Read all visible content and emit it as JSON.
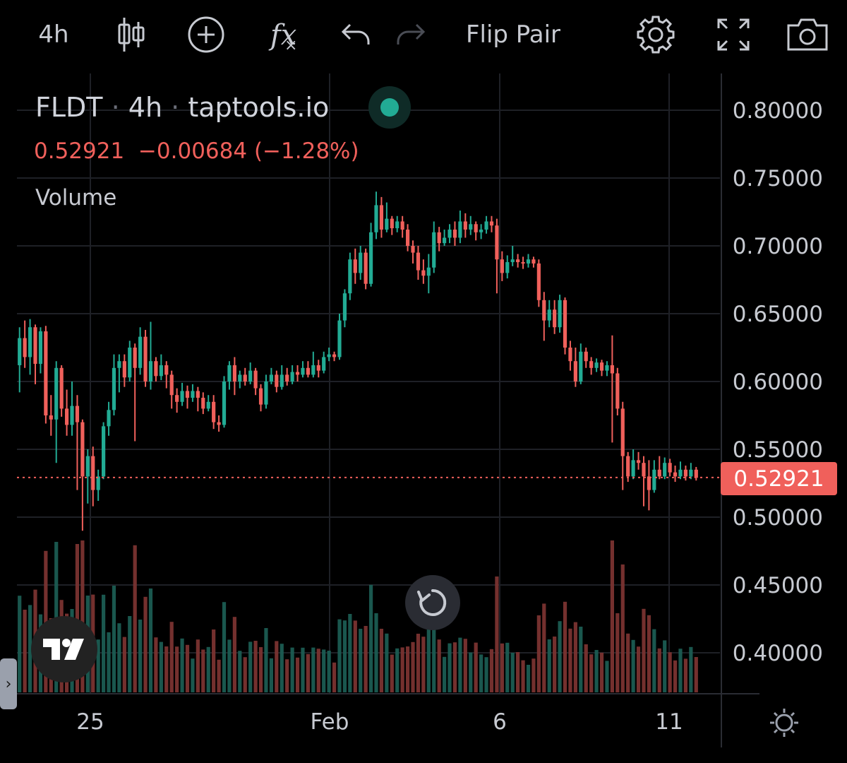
{
  "toolbar": {
    "interval": "4h",
    "flip_pair": "Flip Pair",
    "fx_label": "fx"
  },
  "legend": {
    "symbol": "FLDT",
    "interval": "4h",
    "source": "taptools.io",
    "separator": "·",
    "last": "0.52921",
    "change": "−0.00684",
    "change_pct": "(−1.28%)",
    "volume_label": "Volume"
  },
  "price_tag": "0.52921",
  "colors": {
    "up": "#22ab94",
    "down": "#f0605b",
    "grid": "#1e2026",
    "axis_text": "#c7cad1"
  },
  "icons": [
    "candles-icon",
    "plus-circle-icon",
    "fx-icon",
    "undo-icon",
    "redo-icon",
    "gear-icon",
    "fullscreen-icon",
    "camera-icon",
    "tradingview-logo",
    "reset-icon",
    "sun-settings-icon",
    "chevron-right-icon"
  ],
  "chart_data": {
    "type": "candlestick",
    "y_axis_ticks": [
      "0.80000",
      "0.75000",
      "0.70000",
      "0.65000",
      "0.60000",
      "0.55000",
      "0.50000",
      "0.45000",
      "0.40000"
    ],
    "x_axis_ticks": [
      "25",
      "Feb",
      "6",
      "11"
    ],
    "ylim": [
      0.37,
      0.82
    ],
    "last_price": 0.52921,
    "grid": true,
    "candles": [
      [
        0.612,
        0.632,
        0.592,
        0.64
      ],
      [
        0.632,
        0.618,
        0.61,
        0.645
      ],
      [
        0.618,
        0.64,
        0.605,
        0.646
      ],
      [
        0.64,
        0.613,
        0.598,
        0.642
      ],
      [
        0.613,
        0.637,
        0.606,
        0.64
      ],
      [
        0.637,
        0.575,
        0.569,
        0.641
      ],
      [
        0.575,
        0.572,
        0.56,
        0.59
      ],
      [
        0.572,
        0.61,
        0.54,
        0.615
      ],
      [
        0.61,
        0.58,
        0.574,
        0.612
      ],
      [
        0.58,
        0.568,
        0.56,
        0.594
      ],
      [
        0.568,
        0.582,
        0.56,
        0.6
      ],
      [
        0.582,
        0.57,
        0.52,
        0.59
      ],
      [
        0.57,
        0.53,
        0.49,
        0.572
      ],
      [
        0.53,
        0.545,
        0.51,
        0.55
      ],
      [
        0.545,
        0.52,
        0.508,
        0.552
      ],
      [
        0.52,
        0.53,
        0.512,
        0.535
      ],
      [
        0.53,
        0.567,
        0.528,
        0.57
      ],
      [
        0.567,
        0.579,
        0.56,
        0.585
      ],
      [
        0.579,
        0.61,
        0.575,
        0.62
      ],
      [
        0.61,
        0.615,
        0.592,
        0.62
      ],
      [
        0.615,
        0.603,
        0.596,
        0.62
      ],
      [
        0.603,
        0.625,
        0.6,
        0.63
      ],
      [
        0.625,
        0.61,
        0.556,
        0.628
      ],
      [
        0.61,
        0.633,
        0.605,
        0.64
      ],
      [
        0.633,
        0.6,
        0.596,
        0.638
      ],
      [
        0.6,
        0.615,
        0.594,
        0.644
      ],
      [
        0.615,
        0.604,
        0.6,
        0.618
      ],
      [
        0.604,
        0.612,
        0.601,
        0.62
      ],
      [
        0.612,
        0.605,
        0.595,
        0.615
      ],
      [
        0.605,
        0.59,
        0.58,
        0.608
      ],
      [
        0.59,
        0.585,
        0.577,
        0.595
      ],
      [
        0.585,
        0.593,
        0.582,
        0.599
      ],
      [
        0.593,
        0.588,
        0.58,
        0.597
      ],
      [
        0.588,
        0.593,
        0.585,
        0.598
      ],
      [
        0.593,
        0.588,
        0.578,
        0.596
      ],
      [
        0.588,
        0.58,
        0.576,
        0.592
      ],
      [
        0.58,
        0.585,
        0.578,
        0.59
      ],
      [
        0.585,
        0.57,
        0.565,
        0.59
      ],
      [
        0.57,
        0.568,
        0.563,
        0.575
      ],
      [
        0.568,
        0.6,
        0.566,
        0.604
      ],
      [
        0.6,
        0.612,
        0.594,
        0.615
      ],
      [
        0.612,
        0.6,
        0.59,
        0.618
      ],
      [
        0.6,
        0.605,
        0.595,
        0.608
      ],
      [
        0.605,
        0.6,
        0.597,
        0.61
      ],
      [
        0.6,
        0.608,
        0.598,
        0.614
      ],
      [
        0.608,
        0.595,
        0.59,
        0.61
      ],
      [
        0.595,
        0.583,
        0.578,
        0.598
      ],
      [
        0.583,
        0.6,
        0.58,
        0.605
      ],
      [
        0.6,
        0.605,
        0.598,
        0.61
      ],
      [
        0.605,
        0.596,
        0.592,
        0.608
      ],
      [
        0.596,
        0.605,
        0.594,
        0.612
      ],
      [
        0.605,
        0.6,
        0.597,
        0.61
      ],
      [
        0.6,
        0.607,
        0.598,
        0.612
      ],
      [
        0.607,
        0.605,
        0.6,
        0.612
      ],
      [
        0.605,
        0.61,
        0.603,
        0.615
      ],
      [
        0.61,
        0.605,
        0.603,
        0.615
      ],
      [
        0.605,
        0.612,
        0.603,
        0.622
      ],
      [
        0.612,
        0.608,
        0.603,
        0.616
      ],
      [
        0.608,
        0.618,
        0.606,
        0.622
      ],
      [
        0.618,
        0.62,
        0.615,
        0.625
      ],
      [
        0.62,
        0.618,
        0.615,
        0.622
      ],
      [
        0.618,
        0.645,
        0.616,
        0.65
      ],
      [
        0.645,
        0.665,
        0.64,
        0.668
      ],
      [
        0.665,
        0.69,
        0.66,
        0.695
      ],
      [
        0.69,
        0.68,
        0.672,
        0.698
      ],
      [
        0.68,
        0.695,
        0.675,
        0.7
      ],
      [
        0.695,
        0.672,
        0.668,
        0.698
      ],
      [
        0.672,
        0.71,
        0.67,
        0.717
      ],
      [
        0.71,
        0.73,
        0.705,
        0.74
      ],
      [
        0.73,
        0.712,
        0.706,
        0.736
      ],
      [
        0.712,
        0.72,
        0.71,
        0.732
      ],
      [
        0.72,
        0.713,
        0.708,
        0.722
      ],
      [
        0.713,
        0.718,
        0.71,
        0.722
      ],
      [
        0.718,
        0.712,
        0.706,
        0.722
      ],
      [
        0.712,
        0.7,
        0.696,
        0.716
      ],
      [
        0.7,
        0.695,
        0.687,
        0.704
      ],
      [
        0.695,
        0.682,
        0.675,
        0.7
      ],
      [
        0.682,
        0.678,
        0.672,
        0.69
      ],
      [
        0.678,
        0.684,
        0.665,
        0.694
      ],
      [
        0.684,
        0.71,
        0.68,
        0.718
      ],
      [
        0.71,
        0.702,
        0.696,
        0.714
      ],
      [
        0.702,
        0.706,
        0.7,
        0.712
      ],
      [
        0.706,
        0.712,
        0.702,
        0.716
      ],
      [
        0.712,
        0.706,
        0.7,
        0.718
      ],
      [
        0.706,
        0.718,
        0.702,
        0.726
      ],
      [
        0.718,
        0.712,
        0.706,
        0.724
      ],
      [
        0.712,
        0.716,
        0.708,
        0.722
      ],
      [
        0.716,
        0.71,
        0.704,
        0.718
      ],
      [
        0.71,
        0.712,
        0.705,
        0.716
      ],
      [
        0.712,
        0.718,
        0.709,
        0.722
      ],
      [
        0.718,
        0.715,
        0.71,
        0.722
      ],
      [
        0.715,
        0.69,
        0.665,
        0.72
      ],
      [
        0.69,
        0.68,
        0.674,
        0.696
      ],
      [
        0.68,
        0.688,
        0.676,
        0.693
      ],
      [
        0.688,
        0.69,
        0.685,
        0.7
      ],
      [
        0.69,
        0.688,
        0.684,
        0.694
      ],
      [
        0.688,
        0.687,
        0.683,
        0.692
      ],
      [
        0.687,
        0.69,
        0.684,
        0.694
      ],
      [
        0.69,
        0.687,
        0.684,
        0.692
      ],
      [
        0.687,
        0.66,
        0.655,
        0.69
      ],
      [
        0.66,
        0.645,
        0.63,
        0.666
      ],
      [
        0.645,
        0.653,
        0.64,
        0.66
      ],
      [
        0.653,
        0.64,
        0.635,
        0.66
      ],
      [
        0.64,
        0.66,
        0.636,
        0.664
      ],
      [
        0.66,
        0.625,
        0.62,
        0.662
      ],
      [
        0.625,
        0.615,
        0.608,
        0.63
      ],
      [
        0.615,
        0.6,
        0.596,
        0.625
      ],
      [
        0.6,
        0.622,
        0.598,
        0.628
      ],
      [
        0.622,
        0.615,
        0.61,
        0.625
      ],
      [
        0.615,
        0.61,
        0.605,
        0.618
      ],
      [
        0.61,
        0.614,
        0.607,
        0.617
      ],
      [
        0.614,
        0.608,
        0.604,
        0.616
      ],
      [
        0.608,
        0.612,
        0.604,
        0.615
      ],
      [
        0.612,
        0.606,
        0.555,
        0.634
      ],
      [
        0.606,
        0.58,
        0.575,
        0.61
      ],
      [
        0.58,
        0.545,
        0.52,
        0.585
      ],
      [
        0.545,
        0.53,
        0.526,
        0.548
      ],
      [
        0.53,
        0.542,
        0.528,
        0.55
      ],
      [
        0.542,
        0.54,
        0.535,
        0.548
      ],
      [
        0.54,
        0.53,
        0.508,
        0.545
      ],
      [
        0.53,
        0.52,
        0.505,
        0.542
      ],
      [
        0.52,
        0.535,
        0.518,
        0.542
      ],
      [
        0.535,
        0.53,
        0.528,
        0.545
      ],
      [
        0.53,
        0.54,
        0.528,
        0.544
      ],
      [
        0.54,
        0.533,
        0.53,
        0.543
      ],
      [
        0.533,
        0.53,
        0.526,
        0.538
      ],
      [
        0.53,
        0.535,
        0.528,
        0.541
      ],
      [
        0.535,
        0.53,
        0.527,
        0.538
      ],
      [
        0.53,
        0.535,
        0.528,
        0.54
      ],
      [
        0.535,
        0.529,
        0.527,
        0.537
      ]
    ]
  }
}
